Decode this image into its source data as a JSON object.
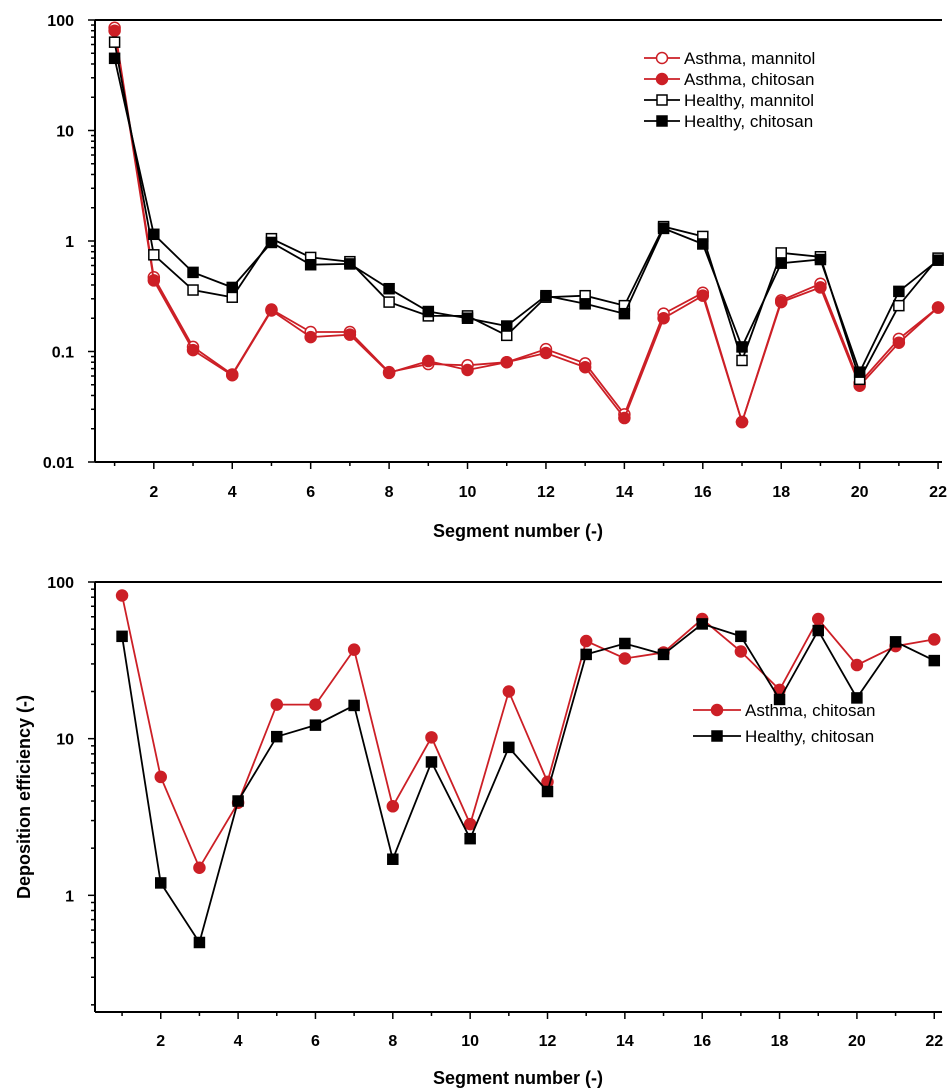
{
  "chart_data": [
    {
      "type": "line",
      "yscale": "log",
      "ylim": [
        0.01,
        100
      ],
      "xlim": [
        0.5,
        22.1
      ],
      "xlabel": "Segment number (-)",
      "ylabel": "",
      "x_ticks": [
        2,
        4,
        6,
        8,
        10,
        12,
        14,
        16,
        18,
        20,
        22
      ],
      "x_tick_labels": [
        "2",
        "4",
        "6",
        "8",
        "10",
        "12",
        "14",
        "16",
        "18",
        "20",
        "22"
      ],
      "y_ticks": [
        0.01,
        0.1,
        1,
        10,
        100
      ],
      "y_tick_labels": [
        "0.01",
        "0.1",
        "1",
        "10",
        "100"
      ],
      "legend_position": "top-right",
      "x": [
        1,
        2,
        3,
        4,
        5,
        6,
        7,
        8,
        9,
        10,
        11,
        12,
        13,
        14,
        15,
        16,
        17,
        18,
        19,
        20,
        21,
        22
      ],
      "series": [
        {
          "name": "Asthma, mannitol",
          "color": "#cc1f26",
          "marker": "circle-open",
          "values": [
            85,
            0.47,
            0.11,
            0.062,
            0.24,
            0.15,
            0.15,
            0.065,
            0.077,
            0.075,
            0.08,
            0.105,
            0.078,
            0.027,
            0.22,
            0.34,
            0.023,
            0.29,
            0.41,
            0.052,
            0.13,
            0.25
          ]
        },
        {
          "name": "Asthma, chitosan",
          "color": "#cc1f26",
          "marker": "circle-filled",
          "values": [
            80,
            0.44,
            0.103,
            0.061,
            0.235,
            0.135,
            0.142,
            0.064,
            0.082,
            0.068,
            0.08,
            0.097,
            0.072,
            0.025,
            0.2,
            0.32,
            0.023,
            0.28,
            0.38,
            0.049,
            0.12,
            0.25
          ]
        },
        {
          "name": "Healthy, mannitol",
          "color": "#000000",
          "marker": "square-open",
          "values": [
            63,
            0.75,
            0.36,
            0.31,
            1.05,
            0.71,
            0.65,
            0.28,
            0.21,
            0.21,
            0.14,
            0.31,
            0.32,
            0.26,
            1.35,
            1.1,
            0.083,
            0.78,
            0.72,
            0.056,
            0.26,
            0.7
          ]
        },
        {
          "name": "Healthy, chitosan",
          "color": "#000000",
          "marker": "square-filled",
          "values": [
            45,
            1.15,
            0.52,
            0.38,
            0.97,
            0.61,
            0.62,
            0.37,
            0.23,
            0.2,
            0.17,
            0.32,
            0.27,
            0.22,
            1.3,
            0.94,
            0.11,
            0.63,
            0.68,
            0.065,
            0.35,
            0.67
          ]
        }
      ]
    },
    {
      "type": "line",
      "yscale": "log",
      "ylim": [
        0.18,
        100
      ],
      "xlim": [
        0.3,
        22.2
      ],
      "xlabel": "Segment number (-)",
      "ylabel": "Deposition efficiency (-)",
      "x_ticks": [
        2,
        4,
        6,
        8,
        10,
        12,
        14,
        16,
        18,
        20,
        22
      ],
      "x_tick_labels": [
        "2",
        "4",
        "6",
        "8",
        "10",
        "12",
        "14",
        "16",
        "18",
        "20",
        "22"
      ],
      "y_ticks": [
        1,
        10,
        100
      ],
      "y_tick_labels": [
        "1",
        "10",
        "100"
      ],
      "legend_position": "middle-right",
      "x": [
        1,
        2,
        3,
        4,
        5,
        6,
        7,
        8,
        9,
        10,
        11,
        12,
        13,
        14,
        15,
        16,
        17,
        18,
        19,
        20,
        21,
        22
      ],
      "series": [
        {
          "name": "Asthma, chitosan",
          "color": "#cc1f26",
          "marker": "circle-filled",
          "values": [
            82,
            5.7,
            1.5,
            3.9,
            16.5,
            16.5,
            37,
            3.7,
            10.2,
            2.85,
            20,
            5.3,
            42,
            32.5,
            35.5,
            58,
            36,
            20.5,
            58,
            29.5,
            39,
            43
          ]
        },
        {
          "name": "Healthy, chitosan",
          "color": "#000000",
          "marker": "square-filled",
          "values": [
            45,
            1.2,
            0.5,
            4.0,
            10.3,
            12.2,
            16.3,
            1.7,
            7.1,
            2.3,
            8.8,
            4.6,
            34.5,
            40.5,
            34.5,
            54,
            45,
            17.8,
            49,
            18.2,
            41.5,
            31.5
          ]
        }
      ]
    }
  ]
}
